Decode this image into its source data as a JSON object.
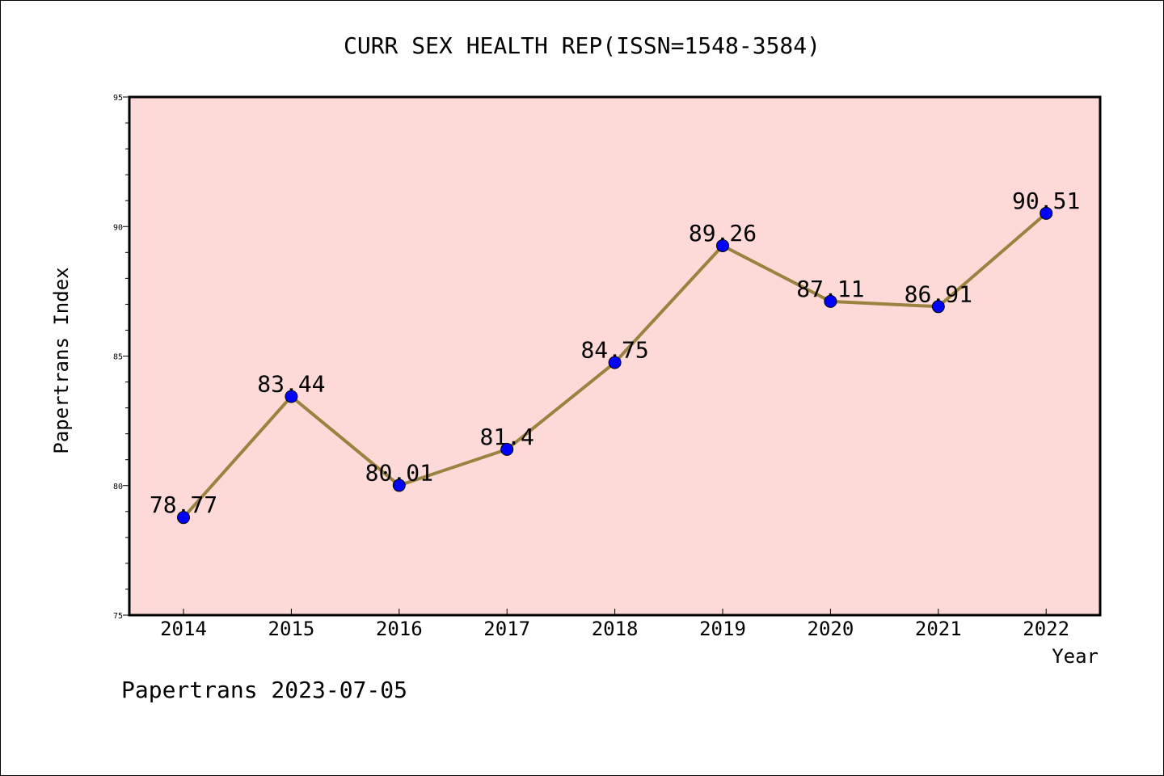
{
  "chart_data": {
    "type": "line",
    "title": "CURR SEX HEALTH REP(ISSN=1548-3584)",
    "xlabel": "Year",
    "ylabel": "Papertrans Index",
    "categories": [
      "2014",
      "2015",
      "2016",
      "2017",
      "2018",
      "2019",
      "2020",
      "2021",
      "2022"
    ],
    "series": [
      {
        "values": [
          78.77,
          83.44,
          80.01,
          81.4,
          84.75,
          89.26,
          87.11,
          86.91,
          90.51
        ],
        "labels": [
          "78.77",
          "83.44",
          "80.01",
          "81.4",
          "84.75",
          "89.26",
          "87.11",
          "86.91",
          "90.51"
        ]
      }
    ],
    "ylim": [
      75,
      95
    ],
    "yticks": [
      "75",
      "80",
      "85",
      "90",
      "95"
    ],
    "legend": "none",
    "grid": false,
    "colors": {
      "plot_background": "#fddad7",
      "line": "#9a8240",
      "marker": "#0000ff"
    }
  },
  "footer": "Papertrans 2023-07-05"
}
